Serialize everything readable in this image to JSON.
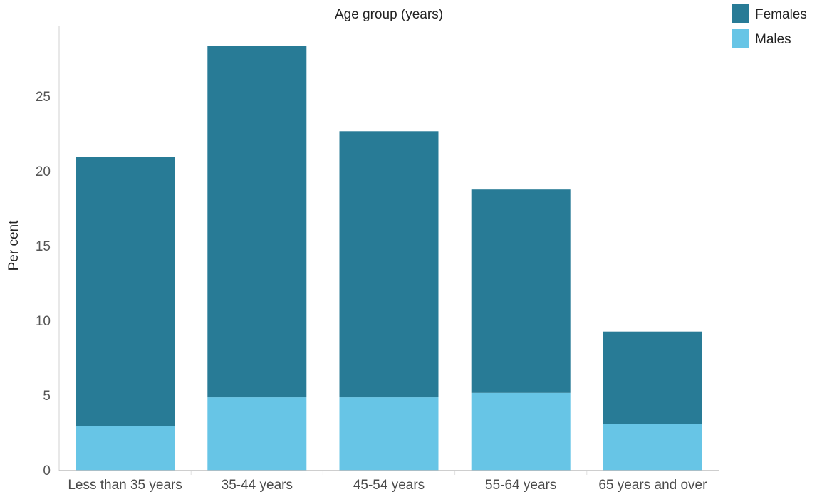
{
  "chart_data": {
    "type": "bar",
    "stacked": true,
    "title": "Age group (years)",
    "xlabel": "",
    "ylabel": "Per cent",
    "ylim": [
      0,
      30
    ],
    "yticks": [
      0,
      5,
      10,
      15,
      20,
      25
    ],
    "categories": [
      "Less than 35 years",
      "35-44 years",
      "45-54 years",
      "55-64 years",
      "65 years and over"
    ],
    "series": [
      {
        "name": "Males",
        "color": "#67c5e6",
        "values": [
          3.0,
          4.9,
          4.9,
          5.2,
          3.1
        ]
      },
      {
        "name": "Females",
        "color": "#287b96",
        "values": [
          18.0,
          23.5,
          17.8,
          13.6,
          6.2
        ]
      }
    ],
    "legend": {
      "position": "top-right",
      "entries": [
        {
          "label": "Females",
          "color": "#287b96"
        },
        {
          "label": "Males",
          "color": "#67c5e6"
        }
      ]
    },
    "grid": false
  }
}
